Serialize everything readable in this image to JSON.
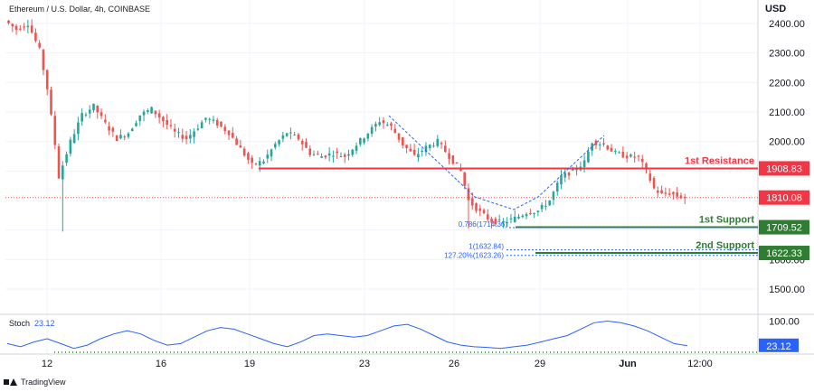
{
  "header": {
    "title": "Ethereum / U.S. Dollar, 4h, COINBASE",
    "currency": "USD"
  },
  "footer": {
    "brand": "TradingView"
  },
  "colors": {
    "bull": "#26a69a",
    "bear": "#ef5350",
    "resistance": "#f23645",
    "support": "#2e7d32",
    "stoch": "#2962ff",
    "fib": "#2962ff",
    "price_label_bg": "#f23645",
    "support_label_bg": "#2e7d32",
    "stoch_label_bg": "#2962ff"
  },
  "chart_data": [
    {
      "type": "candlestick",
      "title": "Ethereum / U.S. Dollar, 4h, COINBASE",
      "ylim": [
        1400,
        2450
      ],
      "y_ticks": [
        "2400.00",
        "2300.00",
        "2200.00",
        "2100.00",
        "2000.00",
        "1900.00",
        "1800.00",
        "1700.00",
        "1600.00",
        "1500.00"
      ],
      "x_ticks": [
        "12",
        "16",
        "19",
        "23",
        "26",
        "29",
        "Jun",
        "12:00"
      ],
      "last_price": "1810.08",
      "approximate_path": [
        [
          0,
          2410
        ],
        [
          3,
          2380
        ],
        [
          6,
          2400
        ],
        [
          9,
          2310
        ],
        [
          11,
          2180
        ],
        [
          13,
          1990
        ],
        [
          14,
          1880
        ],
        [
          17,
          2000
        ],
        [
          20,
          2090
        ],
        [
          23,
          2120
        ],
        [
          26,
          2060
        ],
        [
          29,
          2010
        ],
        [
          32,
          2030
        ],
        [
          35,
          2090
        ],
        [
          38,
          2110
        ],
        [
          41,
          2070
        ],
        [
          44,
          2030
        ],
        [
          47,
          2010
        ],
        [
          50,
          2050
        ],
        [
          52,
          2080
        ],
        [
          55,
          2060
        ],
        [
          58,
          2030
        ],
        [
          61,
          1975
        ],
        [
          64,
          1920
        ],
        [
          67,
          1935
        ],
        [
          70,
          1990
        ],
        [
          73,
          2030
        ],
        [
          76,
          2010
        ],
        [
          79,
          1960
        ],
        [
          82,
          1950
        ],
        [
          85,
          1960
        ],
        [
          88,
          1950
        ],
        [
          91,
          1990
        ],
        [
          94,
          2030
        ],
        [
          97,
          2070
        ],
        [
          100,
          2050
        ],
        [
          103,
          1990
        ],
        [
          106,
          1950
        ],
        [
          109,
          1980
        ],
        [
          112,
          2000
        ],
        [
          115,
          1950
        ],
        [
          118,
          1900
        ],
        [
          120,
          1800
        ],
        [
          123,
          1760
        ],
        [
          126,
          1730
        ],
        [
          129,
          1725
        ],
        [
          132,
          1740
        ],
        [
          135,
          1760
        ],
        [
          138,
          1765
        ],
        [
          141,
          1800
        ],
        [
          144,
          1880
        ],
        [
          147,
          1900
        ],
        [
          150,
          1930
        ],
        [
          152,
          2000
        ],
        [
          155,
          1990
        ],
        [
          158,
          1960
        ],
        [
          161,
          1950
        ],
        [
          164,
          1945
        ],
        [
          166,
          1900
        ],
        [
          168,
          1840
        ],
        [
          170,
          1820
        ],
        [
          172,
          1825
        ],
        [
          174,
          1815
        ],
        [
          176,
          1810
        ]
      ],
      "annotations": {
        "resistance": {
          "label": "1st Resistance",
          "value": 1908.83,
          "value_label": "1908.83"
        },
        "support1": {
          "label": "1st Support",
          "value": 1709.52,
          "value_label": "1709.52"
        },
        "support2": {
          "label": "2nd Support",
          "value": 1622.33,
          "value_label": "1622.33"
        },
        "fib_0786": {
          "label": "0.786(1714.36)",
          "value": 1714.36
        },
        "fib_1": {
          "label": "1(1632.84)",
          "value": 1632.84
        },
        "fib_1272": {
          "label": "127.20%(1623.26)",
          "value": 1623.26
        }
      }
    },
    {
      "type": "line",
      "title": "Stoch",
      "series": [
        {
          "name": "Stoch",
          "current": "23.12",
          "values": [
            30,
            20,
            35,
            45,
            30,
            15,
            25,
            45,
            60,
            70,
            60,
            40,
            25,
            30,
            50,
            70,
            80,
            75,
            60,
            45,
            30,
            20,
            35,
            55,
            60,
            55,
            50,
            55,
            70,
            85,
            90,
            75,
            55,
            35,
            25,
            20,
            18,
            15,
            20,
            25,
            35,
            45,
            55,
            75,
            95,
            100,
            95,
            85,
            70,
            50,
            30,
            23
          ]
        }
      ],
      "y_ticks": [
        "100.00"
      ],
      "ylim": [
        0,
        110
      ]
    }
  ]
}
